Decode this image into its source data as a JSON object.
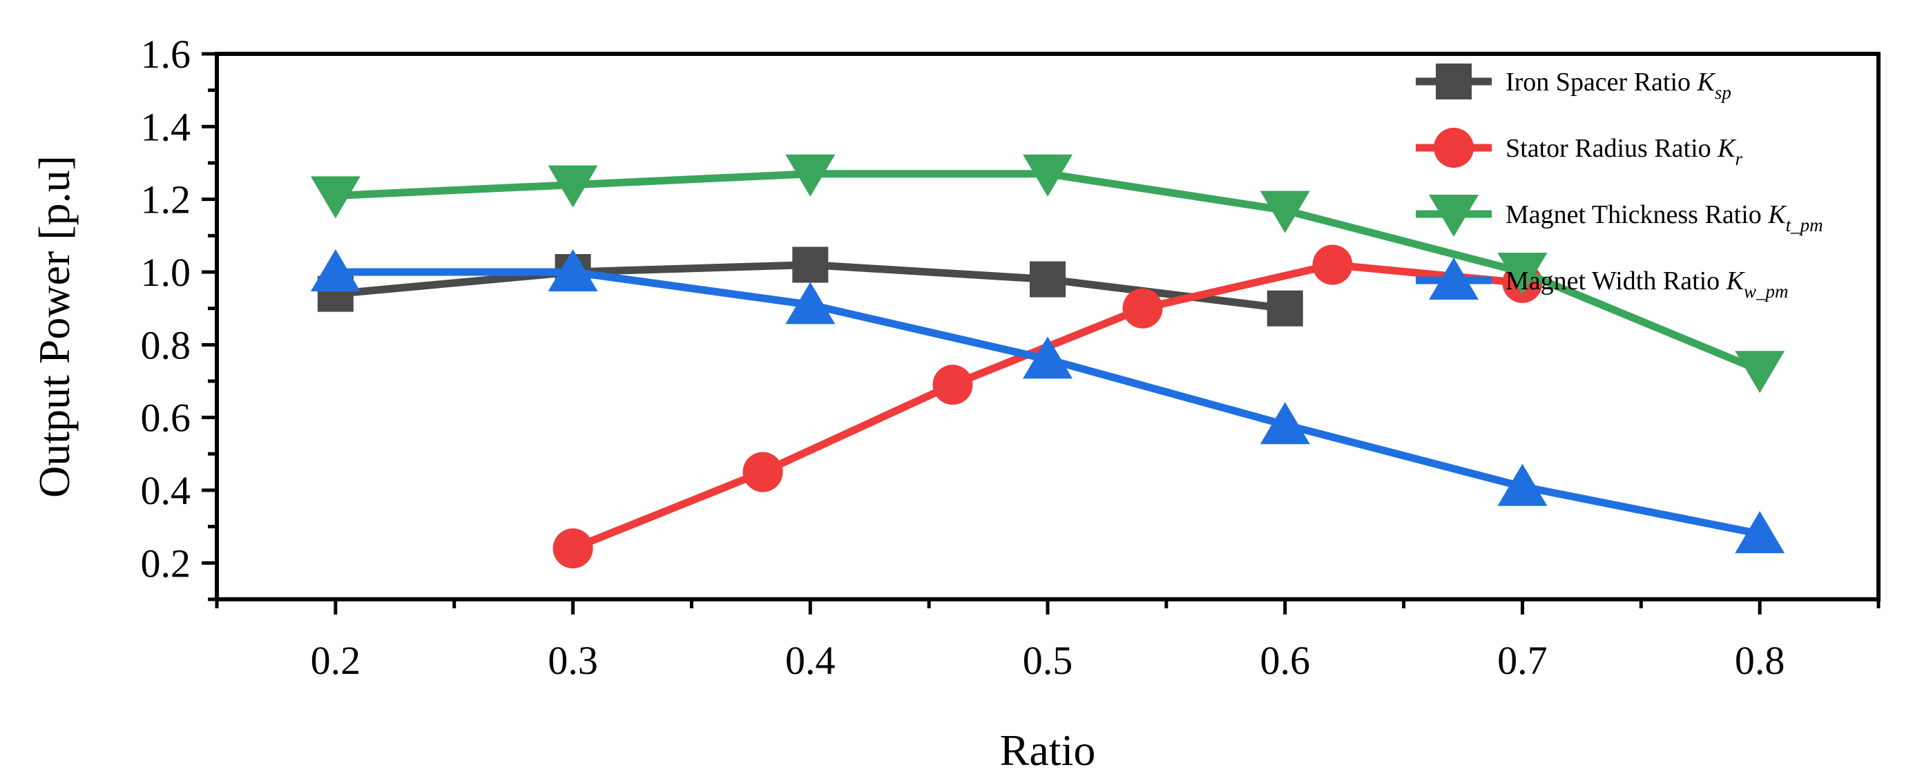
{
  "chart_data": {
    "type": "line",
    "title": "",
    "xlabel": "Ratio",
    "ylabel": "Output Power [p.u]",
    "xlim": [
      0.15,
      0.85
    ],
    "ylim": [
      0.1,
      1.6
    ],
    "xticks": [
      "0.2",
      "0.3",
      "0.4",
      "0.5",
      "0.6",
      "0.7",
      "0.8"
    ],
    "yticks": [
      "0.2",
      "0.4",
      "0.6",
      "0.8",
      "1.0",
      "1.2",
      "1.4",
      "1.6"
    ],
    "grid": false,
    "legend_position": "top-right",
    "series": [
      {
        "name": "Iron Spacer Ratio K",
        "name_sub": "sp",
        "color": "#4a4a4a",
        "marker": "square",
        "x": [
          0.2,
          0.3,
          0.4,
          0.5,
          0.6
        ],
        "y": [
          0.94,
          1.0,
          1.02,
          0.98,
          0.9
        ]
      },
      {
        "name": "Stator Radius Ratio K",
        "name_sub": "r",
        "color": "#ef3b3b",
        "marker": "circle",
        "x": [
          0.3,
          0.38,
          0.46,
          0.54,
          0.62,
          0.7
        ],
        "y": [
          0.24,
          0.45,
          0.69,
          0.9,
          1.02,
          0.97
        ]
      },
      {
        "name": "Magnet Thickness Ratio K",
        "name_sub": "t_pm",
        "color": "#3aa65c",
        "marker": "triangle-down",
        "x": [
          0.2,
          0.3,
          0.4,
          0.5,
          0.6,
          0.7,
          0.8
        ],
        "y": [
          1.21,
          1.24,
          1.27,
          1.27,
          1.17,
          1.0,
          0.73
        ]
      },
      {
        "name": "Magnet Width Ratio K",
        "name_sub": "w_pm",
        "color": "#1f6fe0",
        "marker": "triangle-up",
        "x": [
          0.2,
          0.3,
          0.4,
          0.5,
          0.6,
          0.7,
          0.8
        ],
        "y": [
          1.0,
          1.0,
          0.91,
          0.76,
          0.58,
          0.41,
          0.28
        ]
      }
    ]
  }
}
